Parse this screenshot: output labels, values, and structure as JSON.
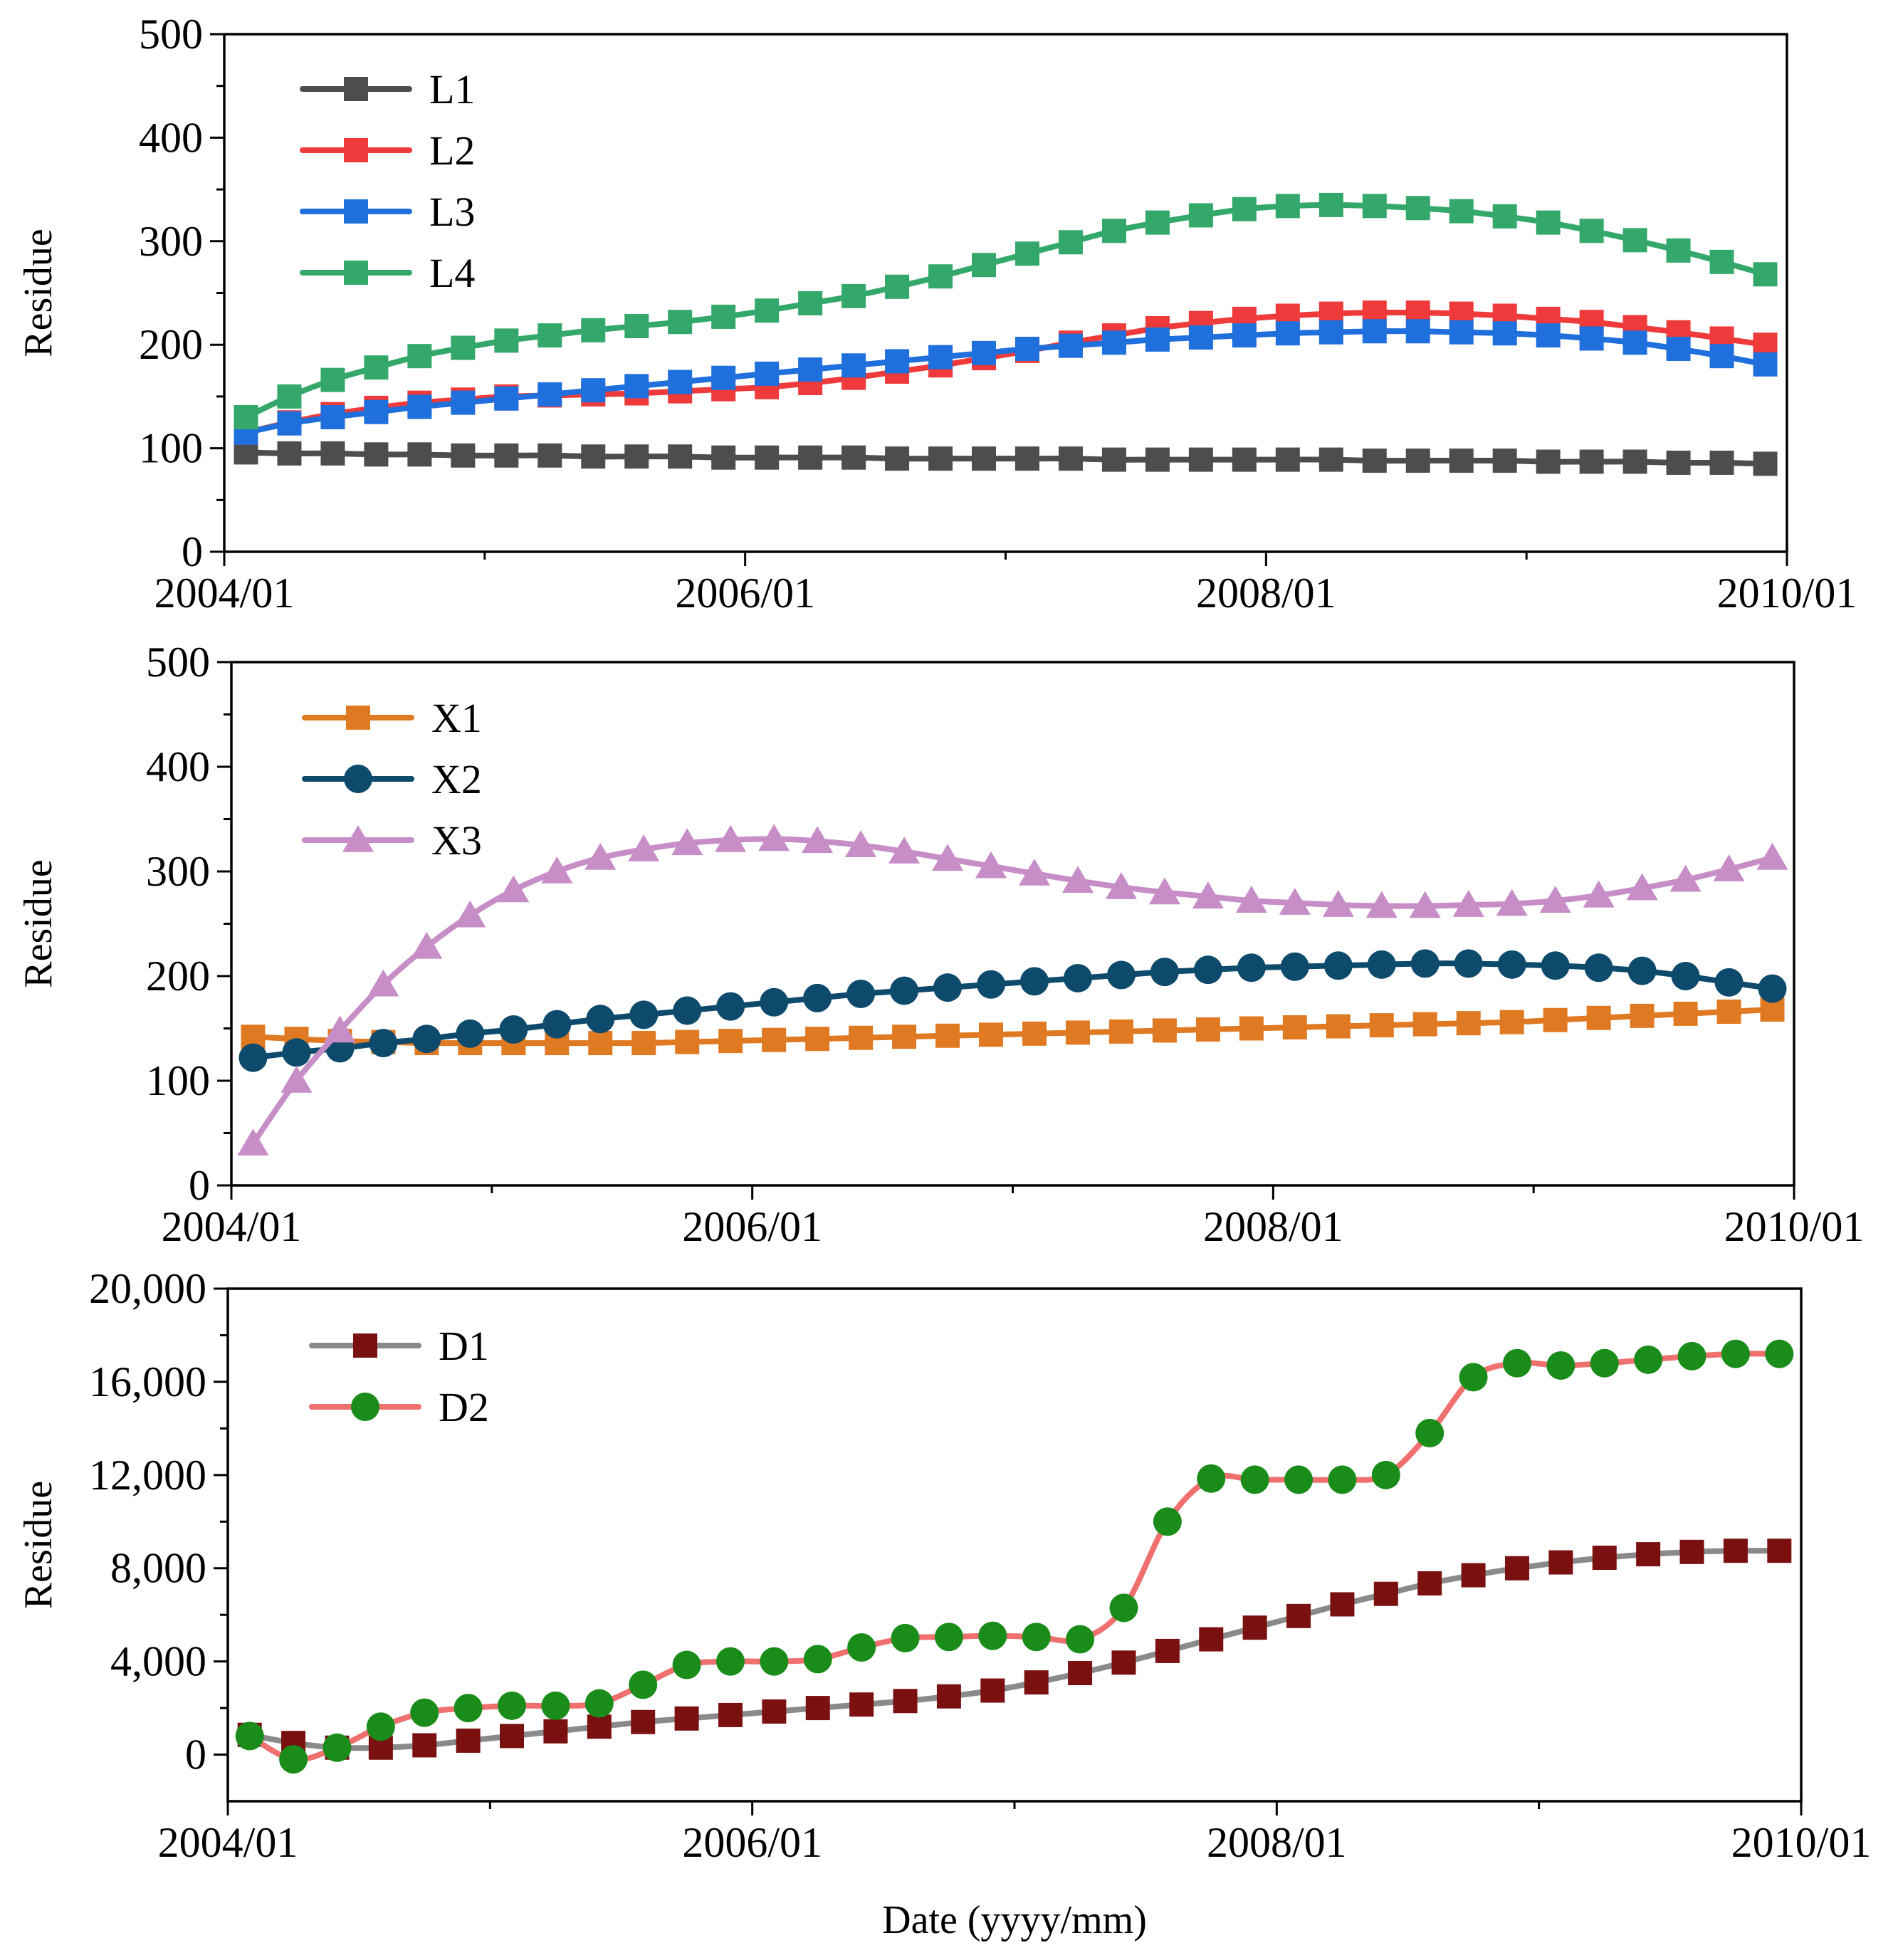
{
  "chart_data": [
    {
      "type": "line",
      "title": "",
      "xlabel": "",
      "ylabel": "Residue",
      "ylim": [
        0,
        500
      ],
      "yticks": [
        0,
        100,
        200,
        300,
        400,
        500
      ],
      "ytick_labels": [
        "0",
        "100",
        "200",
        "300",
        "400",
        "500"
      ],
      "xlim": [
        0,
        72
      ],
      "xticks": [
        0,
        24,
        48,
        72
      ],
      "xtick_labels": [
        "2004/01",
        "2006/01",
        "2008/01",
        "2010/01"
      ],
      "x_minor_ticks": [
        12,
        36,
        60
      ],
      "grid": false,
      "legend_position": "top-left",
      "x": [
        1,
        3,
        5,
        7,
        9,
        11,
        13,
        15,
        17,
        19,
        21,
        23,
        25,
        27,
        29,
        31,
        33,
        35,
        37,
        39,
        41,
        43,
        45,
        47,
        49,
        51,
        53,
        55,
        57,
        59,
        61,
        63,
        65,
        67,
        69,
        71
      ],
      "series": [
        {
          "name": "L1",
          "color": "#4d4d4d",
          "marker": "square",
          "values": [
            96,
            95,
            95,
            94,
            94,
            93,
            93,
            93,
            92,
            92,
            92,
            91,
            91,
            91,
            91,
            90,
            90,
            90,
            90,
            90,
            89,
            89,
            89,
            89,
            89,
            89,
            88,
            88,
            88,
            88,
            87,
            87,
            87,
            86,
            86,
            85
          ]
        },
        {
          "name": "L2",
          "color": "#ee3a3a",
          "marker": "square",
          "values": [
            115,
            125,
            133,
            139,
            144,
            147,
            150,
            151,
            152,
            153,
            155,
            157,
            159,
            163,
            168,
            174,
            180,
            187,
            194,
            202,
            209,
            216,
            221,
            225,
            228,
            230,
            231,
            231,
            230,
            228,
            225,
            222,
            217,
            212,
            206,
            200
          ]
        },
        {
          "name": "L3",
          "color": "#1f6fdc",
          "marker": "square",
          "values": [
            115,
            124,
            130,
            135,
            140,
            144,
            148,
            152,
            156,
            160,
            164,
            168,
            172,
            176,
            180,
            184,
            188,
            192,
            196,
            199,
            202,
            205,
            207,
            209,
            211,
            212,
            213,
            213,
            212,
            211,
            209,
            206,
            202,
            196,
            189,
            181
          ]
        },
        {
          "name": "L4",
          "color": "#33a86a",
          "marker": "square",
          "values": [
            130,
            150,
            166,
            178,
            189,
            197,
            204,
            209,
            214,
            218,
            222,
            227,
            233,
            240,
            247,
            256,
            266,
            277,
            288,
            299,
            310,
            318,
            325,
            331,
            334,
            335,
            334,
            332,
            329,
            324,
            318,
            310,
            301,
            291,
            280,
            268
          ]
        }
      ]
    },
    {
      "type": "line",
      "title": "",
      "xlabel": "",
      "ylabel": "Residue",
      "ylim": [
        0,
        500
      ],
      "yticks": [
        0,
        100,
        200,
        300,
        400,
        500
      ],
      "ytick_labels": [
        "0",
        "100",
        "200",
        "300",
        "400",
        "500"
      ],
      "xlim": [
        0,
        72
      ],
      "xticks": [
        0,
        24,
        48,
        72
      ],
      "xtick_labels": [
        "2004/01",
        "2006/01",
        "2008/01",
        "2010/01"
      ],
      "x_minor_ticks": [
        12,
        36,
        60
      ],
      "grid": false,
      "legend_position": "top-left",
      "x": [
        1,
        3,
        5,
        7,
        9,
        11,
        13,
        15,
        17,
        19,
        21,
        23,
        25,
        27,
        29,
        31,
        33,
        35,
        37,
        39,
        41,
        43,
        45,
        47,
        49,
        51,
        53,
        55,
        57,
        59,
        61,
        63,
        65,
        67,
        69,
        71
      ],
      "series": [
        {
          "name": "X1",
          "color": "#e07a22",
          "marker": "square",
          "values": [
            142,
            140,
            138,
            137,
            136,
            136,
            136,
            136,
            136,
            136,
            137,
            138,
            139,
            140,
            141,
            142,
            143,
            144,
            145,
            146,
            147,
            148,
            149,
            150,
            151,
            152,
            153,
            154,
            155,
            156,
            158,
            160,
            162,
            164,
            166,
            168
          ]
        },
        {
          "name": "X2",
          "color": "#0d4a6b",
          "marker": "circle",
          "values": [
            122,
            127,
            131,
            136,
            140,
            145,
            149,
            154,
            159,
            163,
            167,
            171,
            175,
            179,
            183,
            186,
            189,
            192,
            195,
            198,
            201,
            204,
            206,
            208,
            209,
            210,
            211,
            212,
            212,
            211,
            210,
            208,
            205,
            200,
            194,
            188
          ]
        },
        {
          "name": "X3",
          "color": "#c78dc7",
          "marker": "triangle",
          "values": [
            40,
            100,
            148,
            192,
            228,
            258,
            282,
            300,
            313,
            321,
            327,
            330,
            331,
            329,
            325,
            319,
            312,
            305,
            298,
            291,
            285,
            280,
            276,
            272,
            270,
            268,
            267,
            267,
            268,
            269,
            272,
            277,
            284,
            292,
            302,
            313
          ]
        }
      ]
    },
    {
      "type": "line",
      "title": "",
      "xlabel": "Date (yyyy/mm)",
      "ylabel": "Residue",
      "ylim": [
        -2000,
        20000
      ],
      "yticks": [
        0,
        4000,
        8000,
        12000,
        16000,
        20000
      ],
      "ytick_labels": [
        "0",
        "4,000",
        "8,000",
        "12,000",
        "16,000",
        "20,000"
      ],
      "xlim": [
        0,
        72
      ],
      "xticks": [
        0,
        24,
        48,
        72
      ],
      "xtick_labels": [
        "2004/01",
        "2006/01",
        "2008/01",
        "2010/01"
      ],
      "x_minor_ticks": [
        12,
        36,
        60
      ],
      "grid": false,
      "legend_position": "top-left",
      "x": [
        1,
        3,
        5,
        7,
        9,
        11,
        13,
        15,
        17,
        19,
        21,
        23,
        25,
        27,
        29,
        31,
        33,
        35,
        37,
        39,
        41,
        43,
        45,
        47,
        49,
        51,
        53,
        55,
        57,
        59,
        61,
        63,
        65,
        67,
        69,
        71
      ],
      "series": [
        {
          "name": "D1",
          "color": "#8a8a8a",
          "marker": "square",
          "marker_color": "#7a1010",
          "values": [
            850,
            500,
            300,
            300,
            400,
            600,
            800,
            1000,
            1200,
            1400,
            1550,
            1700,
            1850,
            2000,
            2150,
            2300,
            2500,
            2750,
            3100,
            3500,
            3950,
            4450,
            4950,
            5450,
            5950,
            6450,
            6900,
            7350,
            7700,
            8000,
            8250,
            8450,
            8600,
            8700,
            8750,
            8750
          ]
        },
        {
          "name": "D2",
          "color": "#f07070",
          "marker": "circle",
          "marker_color": "#1a8c1a",
          "values": [
            800,
            -200,
            300,
            1200,
            1800,
            2000,
            2100,
            2100,
            2200,
            3000,
            3850,
            4000,
            4000,
            4100,
            4600,
            5000,
            5050,
            5100,
            5050,
            4950,
            6300,
            10000,
            11850,
            11800,
            11800,
            11800,
            12000,
            13800,
            16200,
            16800,
            16700,
            16800,
            16950,
            17100,
            17200,
            17200
          ]
        }
      ]
    }
  ]
}
